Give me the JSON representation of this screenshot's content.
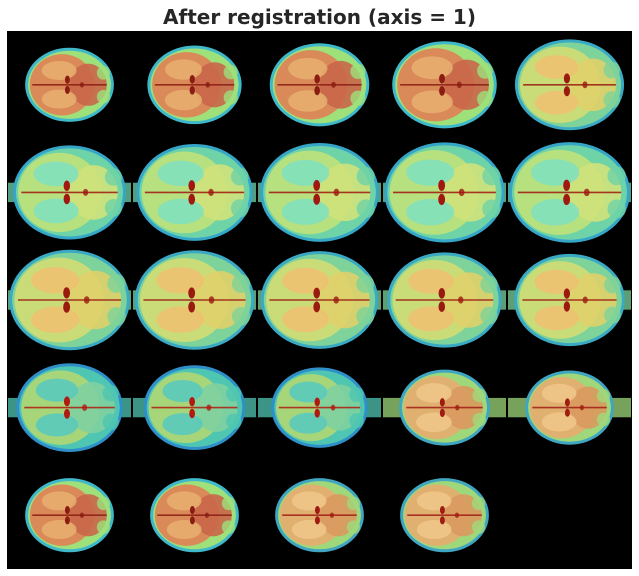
{
  "figure": {
    "title": "After registration (axis = 1)"
  },
  "mosaic": {
    "grid": {
      "rows": 5,
      "cols": 5
    },
    "background_color": "#000000",
    "colormap": "rainbow",
    "slices": [
      {
        "row": 1,
        "col": 1,
        "tone": "orange-red"
      },
      {
        "row": 1,
        "col": 2,
        "tone": "orange-red"
      },
      {
        "row": 1,
        "col": 3,
        "tone": "orange-red"
      },
      {
        "row": 1,
        "col": 4,
        "tone": "orange-red"
      },
      {
        "row": 1,
        "col": 5,
        "tone": "yellow-green"
      },
      {
        "row": 2,
        "col": 1,
        "tone": "green-yellow"
      },
      {
        "row": 2,
        "col": 2,
        "tone": "green-yellow"
      },
      {
        "row": 2,
        "col": 3,
        "tone": "green-yellow"
      },
      {
        "row": 2,
        "col": 4,
        "tone": "green-yellow"
      },
      {
        "row": 2,
        "col": 5,
        "tone": "green-yellow"
      },
      {
        "row": 3,
        "col": 1,
        "tone": "yellow-green"
      },
      {
        "row": 3,
        "col": 2,
        "tone": "yellow-green"
      },
      {
        "row": 3,
        "col": 3,
        "tone": "yellow-green"
      },
      {
        "row": 3,
        "col": 4,
        "tone": "yellow-green"
      },
      {
        "row": 3,
        "col": 5,
        "tone": "yellow-green"
      },
      {
        "row": 4,
        "col": 1,
        "tone": "green"
      },
      {
        "row": 4,
        "col": 2,
        "tone": "green"
      },
      {
        "row": 4,
        "col": 3,
        "tone": "green"
      },
      {
        "row": 4,
        "col": 4,
        "tone": "orange-yellow"
      },
      {
        "row": 4,
        "col": 5,
        "tone": "orange-yellow"
      },
      {
        "row": 5,
        "col": 1,
        "tone": "orange-red"
      },
      {
        "row": 5,
        "col": 2,
        "tone": "orange-red"
      },
      {
        "row": 5,
        "col": 3,
        "tone": "orange-yellow"
      },
      {
        "row": 5,
        "col": 4,
        "tone": "orange-yellow"
      }
    ]
  }
}
